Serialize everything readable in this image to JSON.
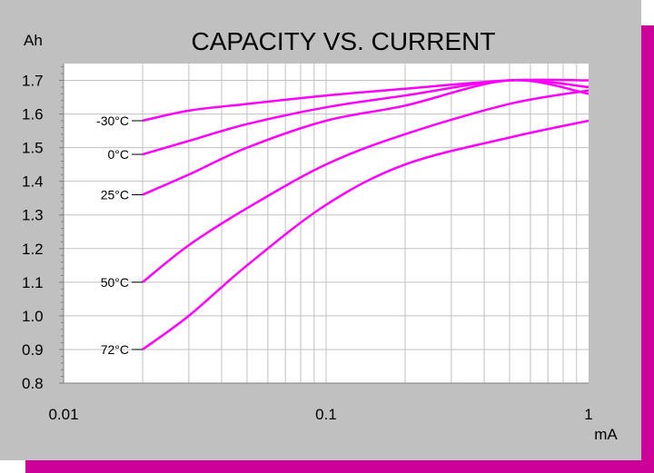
{
  "chart_data": {
    "type": "line",
    "title": "CAPACITY VS. CURRENT",
    "ylabel": "Ah",
    "xlabel": "mA",
    "x_scale": "log",
    "xlim": [
      0.01,
      1
    ],
    "ylim": [
      0.8,
      1.75
    ],
    "grid": true,
    "x_ticks": [
      {
        "value": 0.01,
        "label": "0.01"
      },
      {
        "value": 0.1,
        "label": "0.1"
      },
      {
        "value": 1,
        "label": "1"
      }
    ],
    "y_ticks": [
      {
        "value": 1.7,
        "label": "1.7"
      },
      {
        "value": 1.6,
        "label": "1.6"
      },
      {
        "value": 1.5,
        "label": "1.5"
      },
      {
        "value": 1.4,
        "label": "1.4"
      },
      {
        "value": 1.3,
        "label": "1.3"
      },
      {
        "value": 1.2,
        "label": "1.2"
      },
      {
        "value": 1.1,
        "label": "1.1"
      },
      {
        "value": 1.0,
        "label": "1.0"
      },
      {
        "value": 0.9,
        "label": "0.9"
      },
      {
        "value": 0.8,
        "label": "0.8"
      }
    ],
    "series_color": "#ff00ff",
    "series": [
      {
        "name": "-30°C",
        "x": [
          0.02,
          0.03,
          0.05,
          0.1,
          0.2,
          0.5,
          1.0
        ],
        "y": [
          1.58,
          1.61,
          1.63,
          1.655,
          1.675,
          1.7,
          1.7
        ]
      },
      {
        "name": "0°C",
        "x": [
          0.02,
          0.03,
          0.05,
          0.1,
          0.2,
          0.5,
          1.0
        ],
        "y": [
          1.48,
          1.52,
          1.57,
          1.62,
          1.655,
          1.7,
          1.68
        ]
      },
      {
        "name": "25°C",
        "x": [
          0.02,
          0.03,
          0.05,
          0.1,
          0.2,
          0.5,
          1.0
        ],
        "y": [
          1.36,
          1.42,
          1.5,
          1.58,
          1.625,
          1.7,
          1.66
        ]
      },
      {
        "name": "50°C",
        "x": [
          0.02,
          0.03,
          0.05,
          0.1,
          0.2,
          0.5,
          1.0
        ],
        "y": [
          1.1,
          1.21,
          1.32,
          1.45,
          1.54,
          1.63,
          1.67
        ]
      },
      {
        "name": "72°C",
        "x": [
          0.02,
          0.03,
          0.05,
          0.1,
          0.2,
          0.5,
          1.0
        ],
        "y": [
          0.9,
          1.0,
          1.15,
          1.33,
          1.45,
          1.53,
          1.58
        ]
      }
    ]
  }
}
